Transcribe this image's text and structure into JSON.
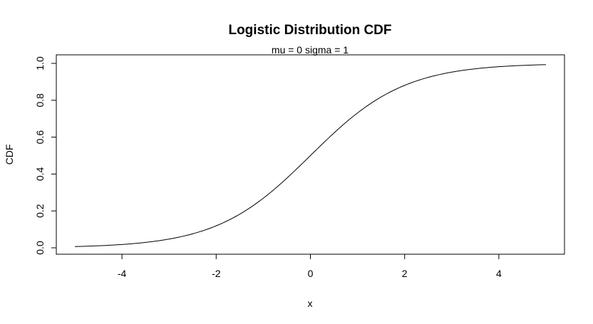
{
  "chart_data": {
    "type": "line",
    "title": "Logistic Distribution CDF",
    "subtitle": "mu = 0  sigma = 1",
    "xlabel": "x",
    "ylabel": "CDF",
    "xlim": [
      -5,
      5
    ],
    "ylim": [
      0,
      1
    ],
    "x_ticks": [
      -4,
      -2,
      0,
      2,
      4
    ],
    "x_tick_labels": [
      "-4",
      "-2",
      "0",
      "2",
      "4"
    ],
    "y_ticks": [
      0,
      0.2,
      0.4,
      0.6,
      0.8,
      1
    ],
    "y_tick_labels": [
      "0.0",
      "0.2",
      "0.4",
      "0.6",
      "0.8",
      "1.0"
    ],
    "grid": false,
    "series": [
      {
        "name": "CDF",
        "color": "#000000",
        "x": [
          -5,
          -4.5,
          -4,
          -3.5,
          -3,
          -2.5,
          -2,
          -1.5,
          -1,
          -0.5,
          0,
          0.5,
          1,
          1.5,
          2,
          2.5,
          3,
          3.5,
          4,
          4.5,
          5
        ],
        "y": [
          0.0067,
          0.011,
          0.018,
          0.0293,
          0.0474,
          0.0759,
          0.1192,
          0.1824,
          0.2689,
          0.3775,
          0.5,
          0.6225,
          0.7311,
          0.8176,
          0.8808,
          0.9241,
          0.9526,
          0.9707,
          0.982,
          0.989,
          0.9933
        ]
      }
    ]
  }
}
